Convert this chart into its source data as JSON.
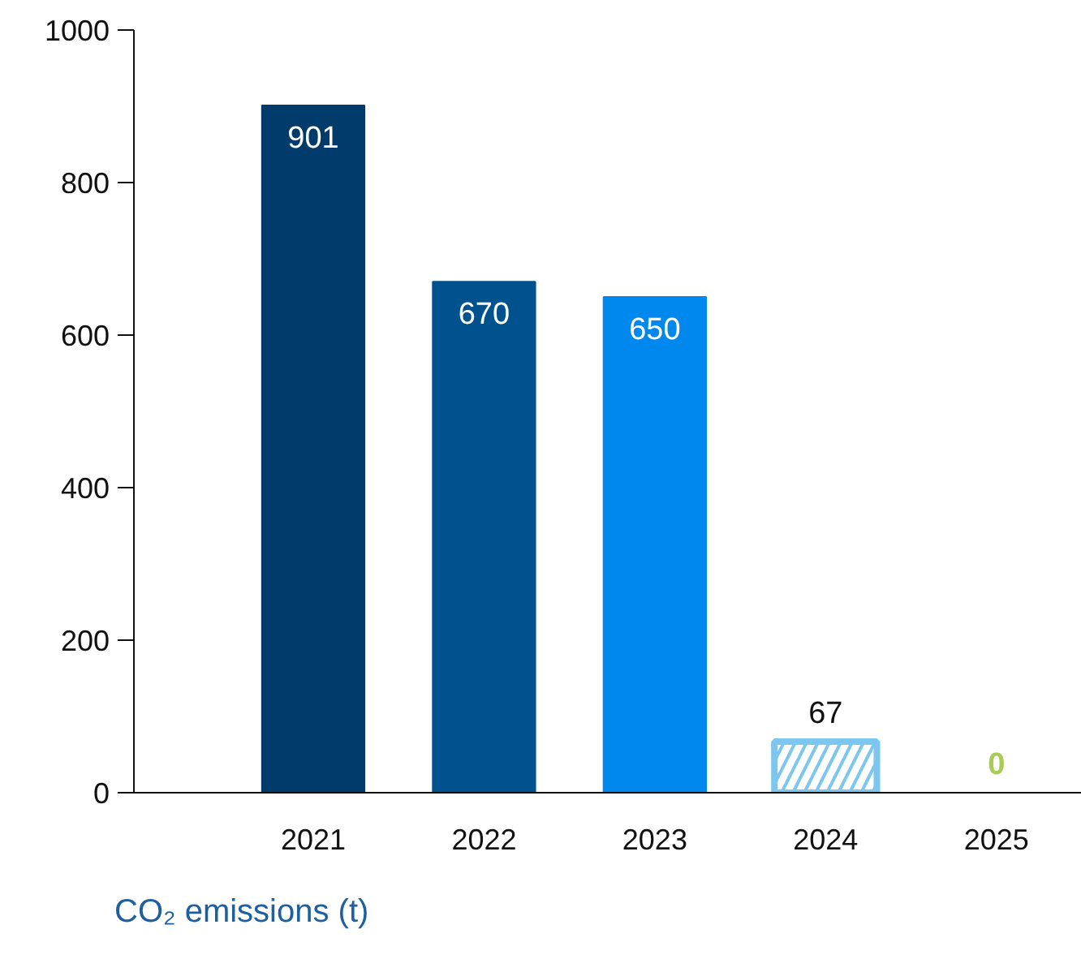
{
  "chart_data": {
    "type": "bar",
    "title": "CO₂ emissions (t)",
    "categories": [
      "2021",
      "2022",
      "2023",
      "2024",
      "2025"
    ],
    "values": [
      901,
      670,
      650,
      67,
      0
    ],
    "colors": [
      "#003b6c",
      "#00528f",
      "#0088ee",
      "#7cc6f0",
      "#a8cc52"
    ],
    "data_labels": true,
    "ylim": [
      0,
      1000
    ],
    "yticks": [
      0,
      200,
      400,
      600,
      800,
      1000
    ],
    "grid": false
  }
}
